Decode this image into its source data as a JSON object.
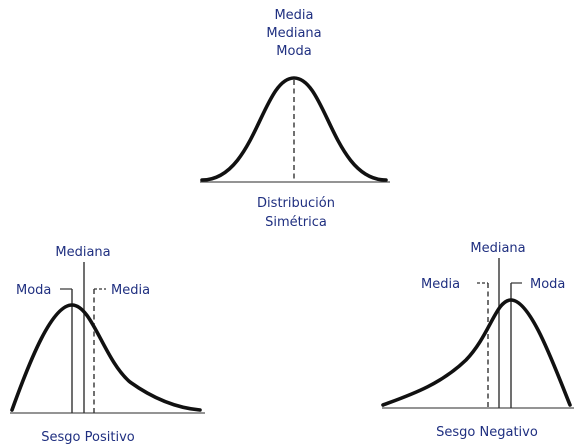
{
  "symmetric": {
    "top_labels": [
      "Media",
      "Mediana",
      "Moda"
    ],
    "caption": [
      "Distribución",
      "Simétrica"
    ]
  },
  "positive": {
    "median_label": "Mediana",
    "mode_label": "Moda",
    "mean_label": "Media",
    "caption": "Sesgo Positivo"
  },
  "negative": {
    "median_label": "Mediana",
    "mean_label": "Media",
    "mode_label": "Moda",
    "caption": "Sesgo Negativo"
  },
  "colors": {
    "label": "#1f2f80",
    "curve": "#111111"
  }
}
